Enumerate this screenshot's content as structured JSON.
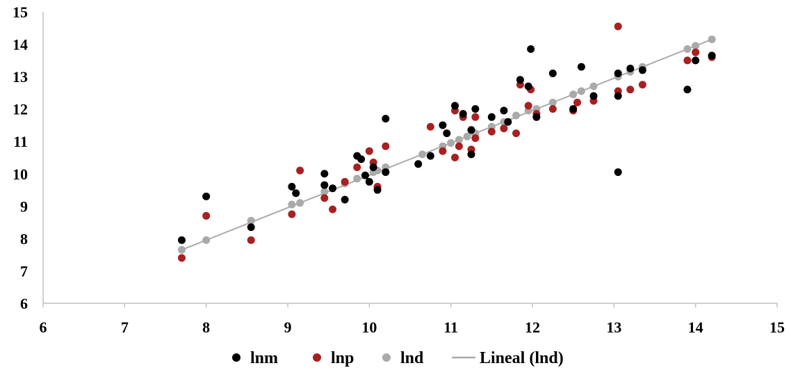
{
  "chart_data": {
    "type": "scatter",
    "title": "",
    "xlabel": "",
    "ylabel": "",
    "xlim": [
      6,
      15
    ],
    "ylim": [
      6,
      15
    ],
    "x_ticks": [
      "6",
      "7",
      "8",
      "9",
      "10",
      "11",
      "12",
      "13",
      "14",
      "15"
    ],
    "y_ticks": [
      "6",
      "7",
      "8",
      "9",
      "10",
      "11",
      "12",
      "13",
      "14",
      "15"
    ],
    "grid": false,
    "legend_position": "bottom",
    "series": [
      {
        "name": "lnm",
        "color": "#000000",
        "marker": "dot",
        "points": [
          [
            7.7,
            7.95
          ],
          [
            8.0,
            9.3
          ],
          [
            8.55,
            8.35
          ],
          [
            9.05,
            9.6
          ],
          [
            9.1,
            9.4
          ],
          [
            9.45,
            10.0
          ],
          [
            9.45,
            9.65
          ],
          [
            9.55,
            9.55
          ],
          [
            9.7,
            9.2
          ],
          [
            9.85,
            10.55
          ],
          [
            9.9,
            10.45
          ],
          [
            9.95,
            9.95
          ],
          [
            10.0,
            9.75
          ],
          [
            10.05,
            10.2
          ],
          [
            10.1,
            9.5
          ],
          [
            10.2,
            11.7
          ],
          [
            10.2,
            10.05
          ],
          [
            10.6,
            10.3
          ],
          [
            10.75,
            10.55
          ],
          [
            10.9,
            11.5
          ],
          [
            10.95,
            11.25
          ],
          [
            11.05,
            12.1
          ],
          [
            11.15,
            11.85
          ],
          [
            11.25,
            11.35
          ],
          [
            11.25,
            10.6
          ],
          [
            11.3,
            12.0
          ],
          [
            11.5,
            11.75
          ],
          [
            11.65,
            11.95
          ],
          [
            11.7,
            11.6
          ],
          [
            11.85,
            12.9
          ],
          [
            11.95,
            12.7
          ],
          [
            11.98,
            13.85
          ],
          [
            12.05,
            11.75
          ],
          [
            12.25,
            13.1
          ],
          [
            12.5,
            12.0
          ],
          [
            12.6,
            13.3
          ],
          [
            12.75,
            12.4
          ],
          [
            13.05,
            13.1
          ],
          [
            13.05,
            12.4
          ],
          [
            13.05,
            10.05
          ],
          [
            13.2,
            13.25
          ],
          [
            13.35,
            13.2
          ],
          [
            13.9,
            12.6
          ],
          [
            14.0,
            13.5
          ],
          [
            14.2,
            13.65
          ]
        ]
      },
      {
        "name": "lnp",
        "color": "#a82020",
        "marker": "dot",
        "points": [
          [
            7.7,
            7.4
          ],
          [
            8.0,
            8.7
          ],
          [
            8.55,
            7.95
          ],
          [
            9.05,
            8.75
          ],
          [
            9.15,
            10.1
          ],
          [
            9.45,
            9.25
          ],
          [
            9.55,
            8.9
          ],
          [
            9.7,
            9.75
          ],
          [
            9.85,
            10.2
          ],
          [
            10.0,
            10.7
          ],
          [
            10.05,
            10.35
          ],
          [
            10.1,
            9.6
          ],
          [
            10.2,
            10.85
          ],
          [
            10.75,
            11.45
          ],
          [
            10.9,
            10.7
          ],
          [
            11.05,
            11.95
          ],
          [
            11.05,
            10.5
          ],
          [
            11.1,
            10.85
          ],
          [
            11.15,
            11.75
          ],
          [
            11.25,
            10.75
          ],
          [
            11.3,
            11.1
          ],
          [
            11.3,
            11.75
          ],
          [
            11.5,
            11.3
          ],
          [
            11.65,
            11.4
          ],
          [
            11.8,
            11.25
          ],
          [
            11.85,
            12.75
          ],
          [
            11.95,
            12.1
          ],
          [
            11.98,
            12.6
          ],
          [
            12.05,
            11.85
          ],
          [
            12.25,
            12.0
          ],
          [
            12.5,
            11.95
          ],
          [
            12.55,
            12.2
          ],
          [
            12.75,
            12.25
          ],
          [
            13.05,
            14.55
          ],
          [
            13.05,
            12.55
          ],
          [
            13.2,
            12.6
          ],
          [
            13.35,
            12.75
          ],
          [
            13.9,
            13.5
          ],
          [
            14.0,
            13.75
          ],
          [
            14.2,
            13.6
          ]
        ]
      },
      {
        "name": "lnd",
        "color": "#aaaaaa",
        "marker": "dot",
        "points": [
          [
            7.7,
            7.65
          ],
          [
            8.0,
            7.95
          ],
          [
            8.55,
            8.55
          ],
          [
            9.05,
            9.05
          ],
          [
            9.15,
            9.1
          ],
          [
            9.45,
            9.45
          ],
          [
            9.55,
            9.55
          ],
          [
            9.7,
            9.7
          ],
          [
            9.85,
            9.85
          ],
          [
            9.95,
            9.95
          ],
          [
            10.05,
            10.05
          ],
          [
            10.1,
            10.1
          ],
          [
            10.2,
            10.2
          ],
          [
            10.65,
            10.6
          ],
          [
            10.9,
            10.85
          ],
          [
            11.0,
            10.95
          ],
          [
            11.1,
            11.05
          ],
          [
            11.2,
            11.15
          ],
          [
            11.3,
            11.25
          ],
          [
            11.5,
            11.45
          ],
          [
            11.65,
            11.6
          ],
          [
            11.8,
            11.8
          ],
          [
            11.95,
            11.95
          ],
          [
            12.05,
            12.0
          ],
          [
            12.25,
            12.2
          ],
          [
            12.5,
            12.45
          ],
          [
            12.6,
            12.55
          ],
          [
            12.75,
            12.7
          ],
          [
            13.05,
            13.0
          ],
          [
            13.2,
            13.15
          ],
          [
            13.35,
            13.3
          ],
          [
            13.9,
            13.85
          ],
          [
            14.0,
            13.95
          ],
          [
            14.2,
            14.15
          ]
        ]
      },
      {
        "name": "Lineal (lnd)",
        "color": "#aaaaaa",
        "marker": "line",
        "points": [
          [
            7.7,
            7.65
          ],
          [
            14.2,
            14.15
          ]
        ]
      }
    ]
  }
}
